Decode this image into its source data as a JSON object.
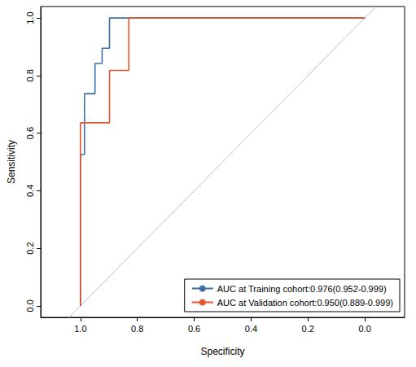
{
  "chart_data": {
    "type": "line",
    "x_label": "Specificity",
    "y_label": "Sensitivity",
    "xlim": [
      1.14,
      -0.14
    ],
    "ylim": [
      -0.04,
      1.04
    ],
    "xticks": [
      {
        "value": 1,
        "label": "1.0"
      },
      {
        "value": 0.8,
        "label": "0.8"
      },
      {
        "value": 0.6,
        "label": "0.6"
      },
      {
        "value": 0.4,
        "label": "0.4"
      },
      {
        "value": 0.2,
        "label": "0.2"
      },
      {
        "value": 0,
        "label": "0.0"
      }
    ],
    "yticks": [
      {
        "value": 0,
        "label": "0.0"
      },
      {
        "value": 0.2,
        "label": "0.2"
      },
      {
        "value": 0.4,
        "label": "0.4"
      },
      {
        "value": 0.6,
        "label": "0.6"
      },
      {
        "value": 0.8,
        "label": "0.8"
      },
      {
        "value": 1,
        "label": "1.0"
      }
    ],
    "grid": false,
    "legend": "bottom-right",
    "line_style": "step",
    "series": [
      {
        "name": "AUC at Training cohort:0.976(0.952-0.999)",
        "color": "#3d6fa8",
        "x": [
          1,
          1,
          0.986,
          0.986,
          0.949,
          0.949,
          0.924,
          0.924,
          0.898,
          0.898,
          0
        ],
        "values": [
          0,
          0.526,
          0.526,
          0.737,
          0.737,
          0.842,
          0.842,
          0.895,
          0.895,
          1,
          1
        ]
      },
      {
        "name": "AUC at Validation cohort:0.950(0.889-0.999)",
        "color": "#e0552f",
        "x": [
          1,
          1,
          0.898,
          0.898,
          0.83,
          0.83,
          0
        ],
        "values": [
          0,
          0.636,
          0.636,
          0.818,
          0.818,
          1,
          1
        ]
      }
    ],
    "reference_line": {
      "x": [
        1,
        0
      ],
      "values": [
        0,
        1
      ],
      "color": "#c0c0c0"
    }
  }
}
